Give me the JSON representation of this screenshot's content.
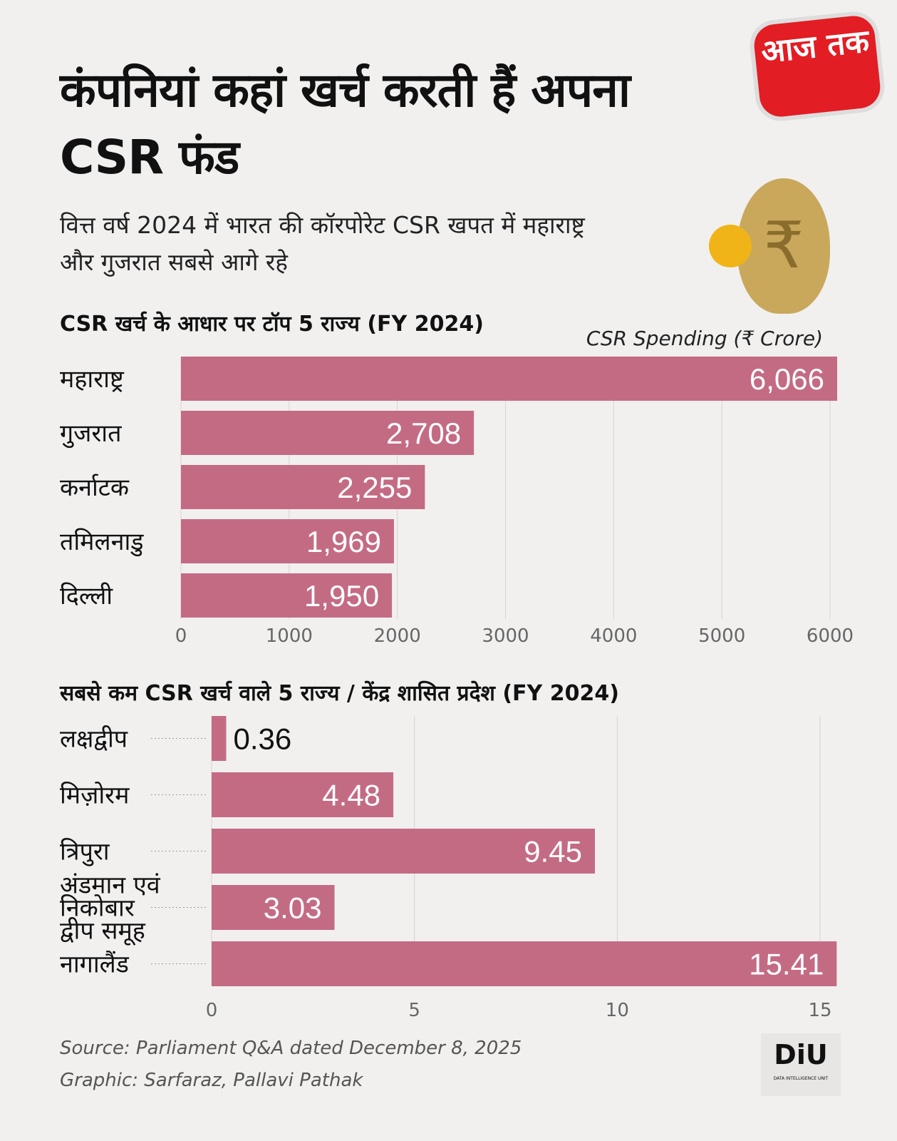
{
  "header": {
    "title": "कंपनियां कहां खर्च करती हैं अपना CSR फंड",
    "subtitle": "वित्त वर्ष 2024 में भारत की कॉरपोरेट CSR खपत में महाराष्ट्र और गुजरात सबसे आगे रहे",
    "logo_text": "आज तक"
  },
  "chart_data": [
    {
      "type": "bar",
      "orientation": "horizontal",
      "title": "CSR खर्च के आधार पर टॉप 5 राज्य (FY 2024)",
      "unit_label": "CSR Spending (₹ Crore)",
      "categories": [
        "महाराष्ट्र",
        "गुजरात",
        "कर्नाटक",
        "तमिलनाडु",
        "दिल्ली"
      ],
      "values": [
        6066,
        2708,
        2255,
        1969,
        1950
      ],
      "value_labels": [
        "6,066",
        "2,708",
        "2,255",
        "1,969",
        "1,950"
      ],
      "xlim": [
        0,
        6000
      ],
      "ticks": [
        "0",
        "1000",
        "2000",
        "3000",
        "4000",
        "5000",
        "6000"
      ],
      "grid": true,
      "bar_color": "#c46b84"
    },
    {
      "type": "bar",
      "orientation": "horizontal",
      "title": "सबसे कम CSR खर्च वाले 5 राज्य / केंद्र शासित प्रदेश (FY 2024)",
      "categories": [
        "लक्षद्वीप",
        "मिज़ोरम",
        "त्रिपुरा",
        "अंडमान एवं निकोबार द्वीप समूह",
        "नागालैंड"
      ],
      "values": [
        0.36,
        4.48,
        9.45,
        3.03,
        15.41
      ],
      "value_labels": [
        "0.36",
        "4.48",
        "9.45",
        "3.03",
        "15.41"
      ],
      "xlim": [
        0,
        15
      ],
      "ticks": [
        "0",
        "5",
        "10",
        "15"
      ],
      "grid": true,
      "bar_color": "#c46b84"
    }
  ],
  "footer": {
    "source": "Source: Parliament Q&A dated December 8, 2025",
    "graphic": "Graphic:  Sarfaraz, Pallavi Pathak",
    "logo_text": "DiU",
    "logo_sub": "DATA INTELLIGENCE UNIT"
  }
}
